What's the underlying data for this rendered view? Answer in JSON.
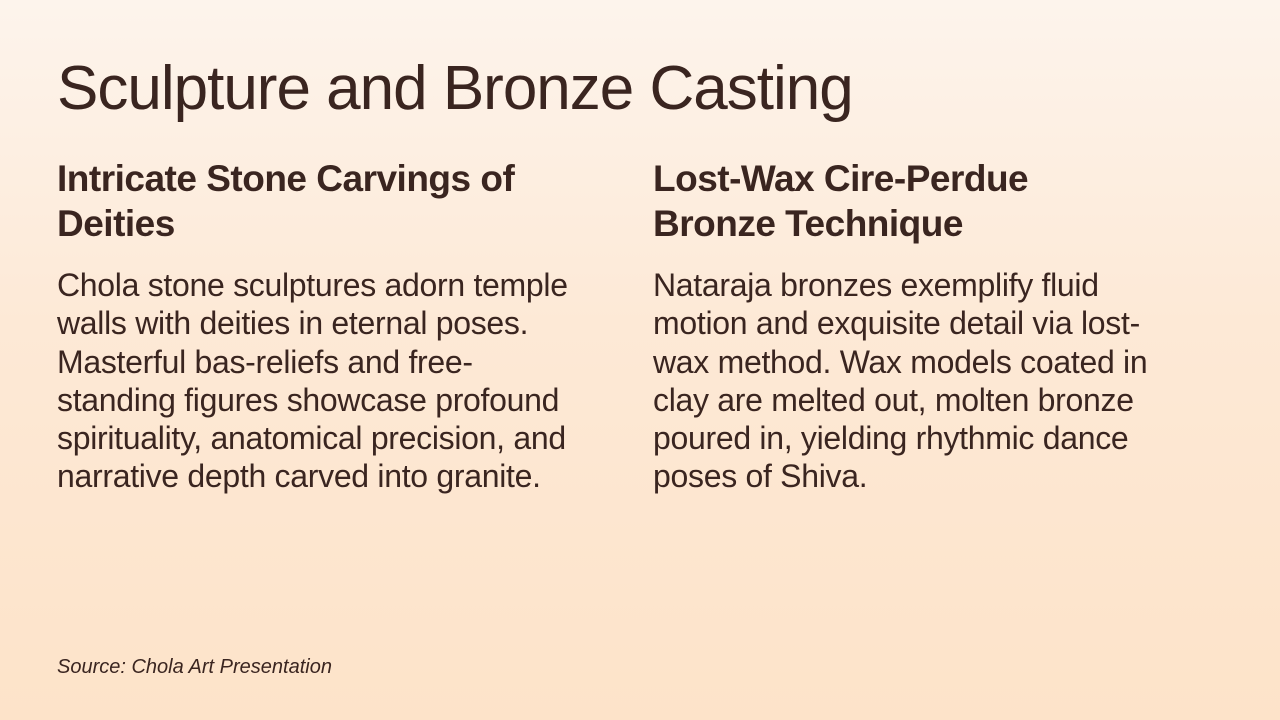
{
  "title": "Sculpture and Bronze Casting",
  "columns": [
    {
      "heading": "Intricate Stone Carvings of Deities",
      "body": "Chola stone sculptures adorn temple walls with deities in eternal poses. Masterful bas-reliefs and free-standing figures showcase profound spirituality, anatomical precision, and narrative depth carved into granite."
    },
    {
      "heading": "Lost-Wax Cire-Perdue Bronze Technique",
      "body": "Nataraja bronzes exemplify fluid motion and exquisite detail via lost-wax method. Wax models coated in clay are melted out, molten bronze poured in, yielding rhythmic dance poses of Shiva."
    }
  ],
  "source": "Source: Chola Art Presentation"
}
